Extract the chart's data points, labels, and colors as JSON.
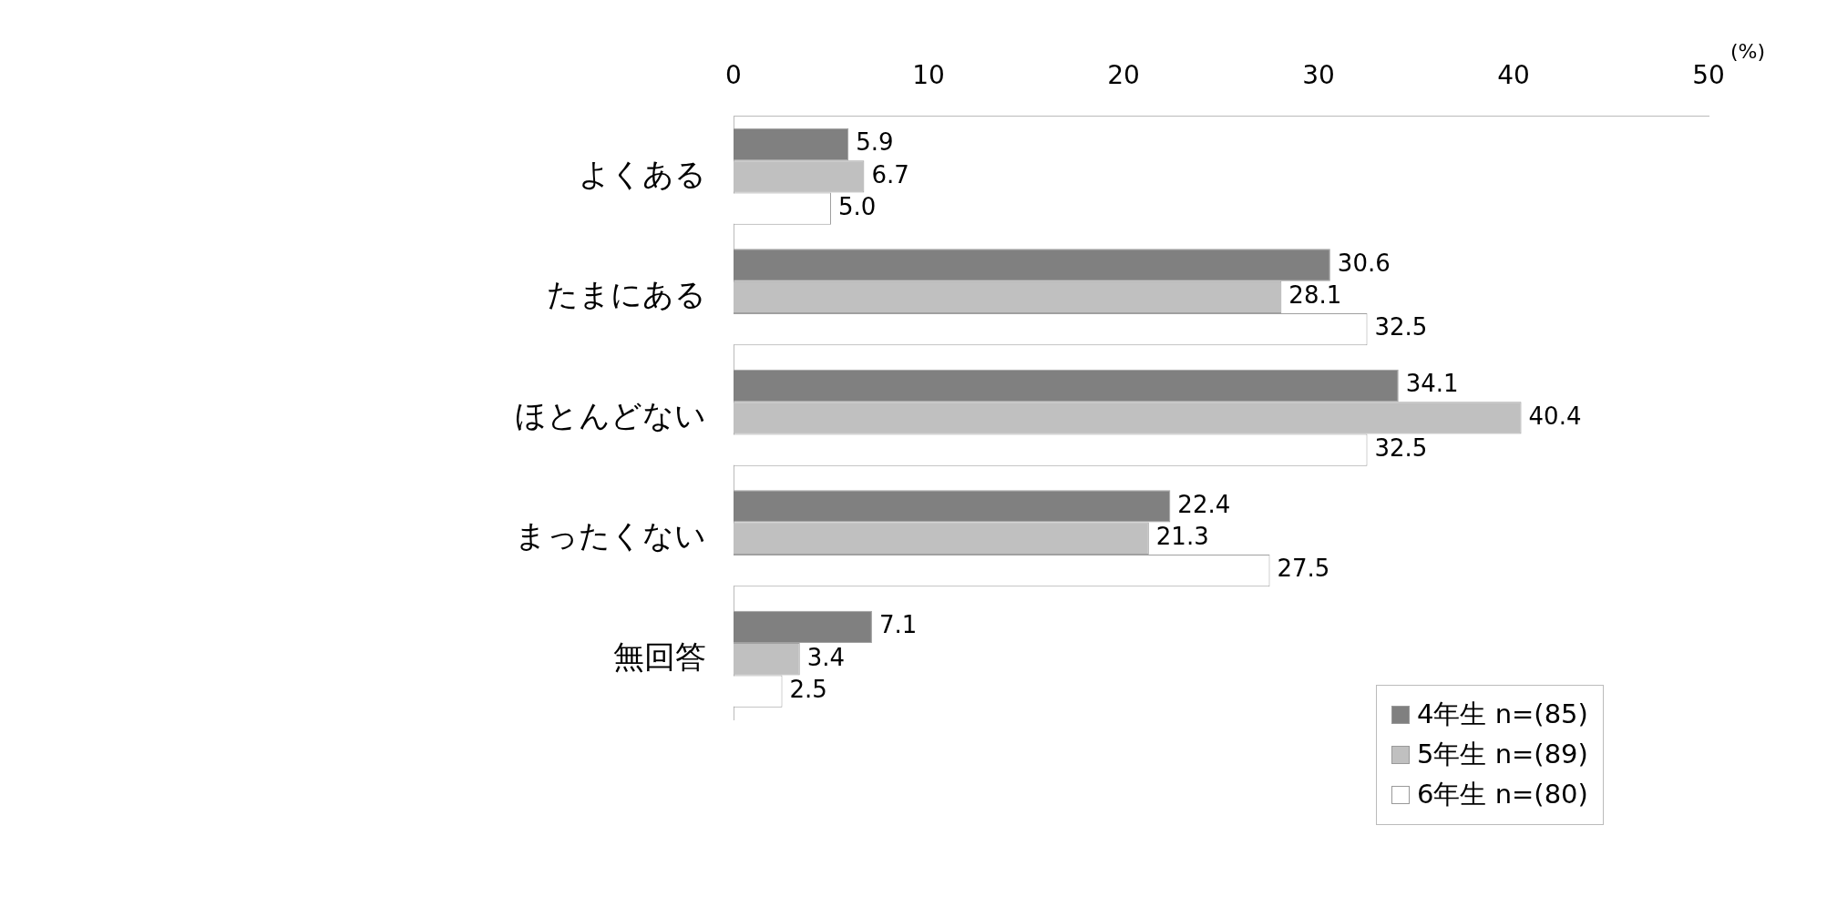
{
  "chart_data": {
    "type": "bar",
    "orientation": "horizontal",
    "xlabel": "(%)",
    "categories": [
      "よくある",
      "たまにある",
      "ほとんどない",
      "まったくない",
      "無回答"
    ],
    "series": [
      {
        "name": "4年生 n=(85)",
        "color": "#808080",
        "values": [
          5.9,
          30.6,
          34.1,
          22.4,
          7.1
        ],
        "value_labels": [
          "5.9",
          "30.6",
          "34.1",
          "22.4",
          "7.1"
        ]
      },
      {
        "name": "5年生 n=(89)",
        "color": "#c0c0c0",
        "values": [
          6.7,
          28.1,
          40.4,
          21.3,
          3.4
        ],
        "value_labels": [
          "6.7",
          "28.1",
          "40.4",
          "21.3",
          "3.4"
        ]
      },
      {
        "name": "6年生 n=(80)",
        "color": "#ffffff",
        "values": [
          5.0,
          32.5,
          32.5,
          27.5,
          2.5
        ],
        "value_labels": [
          "5.0",
          "32.5",
          "32.5",
          "27.5",
          "2.5"
        ]
      }
    ],
    "xlim": [
      0,
      50
    ],
    "xticks": [
      0,
      10,
      20,
      30,
      40,
      50
    ],
    "grid": false,
    "legend": "bottom right"
  }
}
